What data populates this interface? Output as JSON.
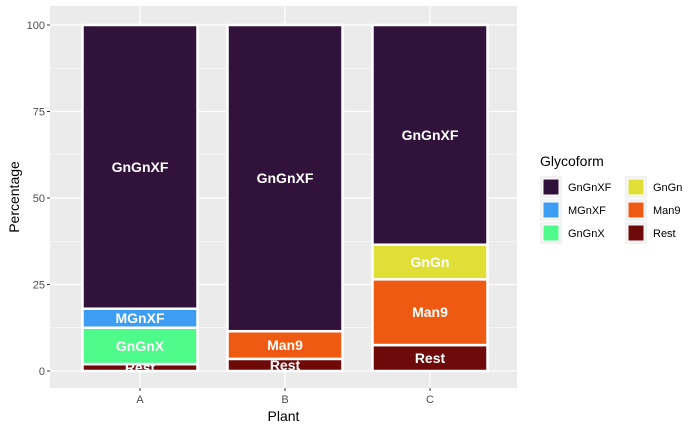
{
  "chart_data": {
    "type": "bar",
    "stacked": true,
    "categories": [
      "A",
      "B",
      "C"
    ],
    "series": [
      {
        "name": "Rest",
        "color": "#6f0a0a",
        "values": [
          2,
          3.5,
          7.5
        ]
      },
      {
        "name": "Man9",
        "color": "#ef5a12",
        "values": [
          0,
          8,
          19
        ]
      },
      {
        "name": "GnGnX",
        "color": "#4efb8a",
        "values": [
          10.5,
          0,
          0
        ]
      },
      {
        "name": "GnGn",
        "color": "#e0df37",
        "values": [
          0,
          0,
          10
        ]
      },
      {
        "name": "MGnXF",
        "color": "#3d9df2",
        "values": [
          5.5,
          0,
          0
        ]
      },
      {
        "name": "GnGnXF",
        "color": "#30123b",
        "values": [
          82,
          88.5,
          63.5
        ]
      }
    ],
    "xlabel": "Plant",
    "ylabel": "Percentage",
    "ylim": [
      0,
      100
    ],
    "yticks": [
      0,
      25,
      50,
      75,
      100
    ],
    "grid": true,
    "legend": {
      "title": "Glycoform",
      "position": "right",
      "columns": [
        [
          "GnGnXF",
          "MGnXF",
          "GnGnX"
        ],
        [
          "GnGn",
          "Man9",
          "Rest"
        ]
      ]
    }
  }
}
